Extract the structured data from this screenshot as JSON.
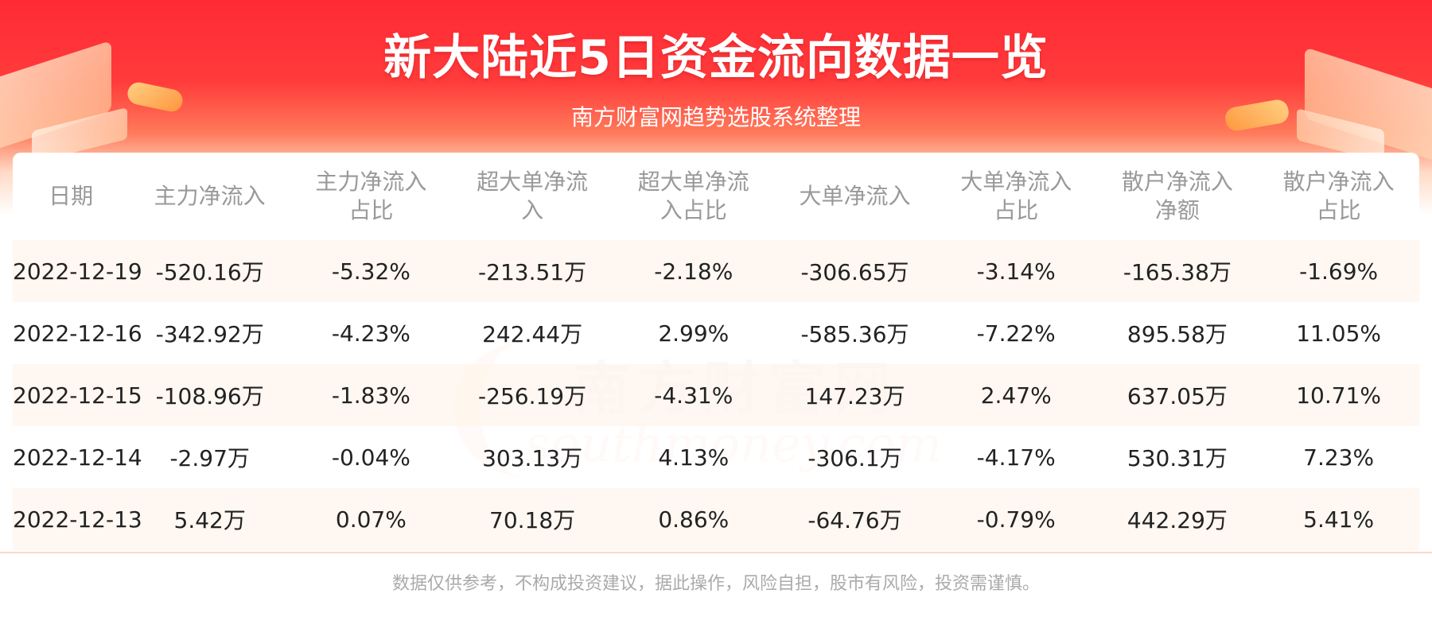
{
  "header": {
    "title": "新大陆近5日资金流向数据一览",
    "subtitle": "南方财富网趋势选股系统整理"
  },
  "watermark": {
    "cn": "南方财富网",
    "en": "southmoney.com"
  },
  "table": {
    "columns": [
      "日期",
      "主力净流入",
      "主力净流入\n占比",
      "超大单净流\n入",
      "超大单净流\n入占比",
      "大单净流入",
      "大单净流入\n占比",
      "散户净流入\n净额",
      "散户净流入\n占比"
    ],
    "rows": [
      [
        "2022-12-19",
        "-520.16万",
        "-5.32%",
        "-213.51万",
        "-2.18%",
        "-306.65万",
        "-3.14%",
        "-165.38万",
        "-1.69%"
      ],
      [
        "2022-12-16",
        "-342.92万",
        "-4.23%",
        "242.44万",
        "2.99%",
        "-585.36万",
        "-7.22%",
        "895.58万",
        "11.05%"
      ],
      [
        "2022-12-15",
        "-108.96万",
        "-1.83%",
        "-256.19万",
        "-4.31%",
        "147.23万",
        "2.47%",
        "637.05万",
        "10.71%"
      ],
      [
        "2022-12-14",
        "-2.97万",
        "-0.04%",
        "303.13万",
        "4.13%",
        "-306.1万",
        "-4.17%",
        "530.31万",
        "7.23%"
      ],
      [
        "2022-12-13",
        "5.42万",
        "0.07%",
        "70.18万",
        "0.86%",
        "-64.76万",
        "-0.79%",
        "442.29万",
        "5.41%"
      ]
    ]
  },
  "footer": {
    "disclaimer": "数据仅供参考，不构成投资建议，据此操作，风险自担，股市有风险，投资需谨慎。"
  },
  "colors": {
    "banner_red": "#ff2a35",
    "header_text": "#999999",
    "cell_text": "#222222",
    "row_stripe": "#fff6ee",
    "disclaimer_text": "#aaaaaa"
  }
}
